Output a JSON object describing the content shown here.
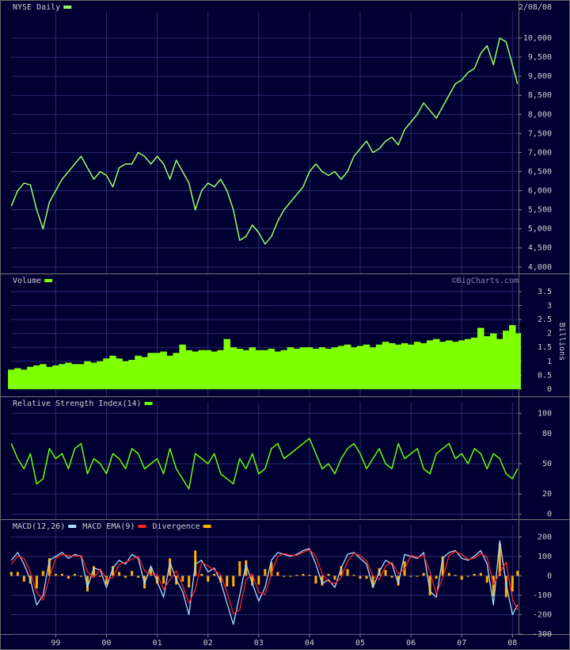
{
  "chart_data": [
    {
      "type": "line",
      "title": "NYSE Daily",
      "date": "2/08/08",
      "color": "#99ff66",
      "grid": true,
      "xlim": [
        1998.12,
        2008.12
      ],
      "x": [
        1998.125,
        1998.25,
        1998.375,
        1998.5,
        1998.625,
        1998.75,
        1998.875,
        1999.0,
        1999.125,
        1999.25,
        1999.375,
        1999.5,
        1999.625,
        1999.75,
        1999.875,
        2000.0,
        2000.125,
        2000.25,
        2000.375,
        2000.5,
        2000.625,
        2000.75,
        2000.875,
        2001.0,
        2001.125,
        2001.25,
        2001.375,
        2001.5,
        2001.625,
        2001.75,
        2001.875,
        2002.0,
        2002.125,
        2002.25,
        2002.375,
        2002.5,
        2002.625,
        2002.75,
        2002.875,
        2003.0,
        2003.125,
        2003.25,
        2003.375,
        2003.5,
        2003.625,
        2003.75,
        2003.875,
        2004.0,
        2004.125,
        2004.25,
        2004.375,
        2004.5,
        2004.625,
        2004.75,
        2004.875,
        2005.0,
        2005.125,
        2005.25,
        2005.375,
        2005.5,
        2005.625,
        2005.75,
        2005.875,
        2006.0,
        2006.125,
        2006.25,
        2006.375,
        2006.5,
        2006.625,
        2006.75,
        2006.875,
        2007.0,
        2007.125,
        2007.25,
        2007.375,
        2007.5,
        2007.625,
        2007.75,
        2007.875,
        2008.0,
        2008.1
      ],
      "values": [
        5600,
        6000,
        6200,
        6150,
        5500,
        5000,
        5700,
        6000,
        6300,
        6500,
        6700,
        6900,
        6600,
        6300,
        6500,
        6400,
        6100,
        6600,
        6700,
        6700,
        7000,
        6900,
        6700,
        6900,
        6700,
        6300,
        6800,
        6500,
        6200,
        5500,
        6000,
        6200,
        6100,
        6300,
        6000,
        5500,
        4700,
        4800,
        5100,
        4900,
        4600,
        4800,
        5200,
        5500,
        5700,
        5900,
        6100,
        6500,
        6700,
        6500,
        6400,
        6500,
        6300,
        6500,
        6900,
        7100,
        7300,
        7000,
        7100,
        7300,
        7400,
        7200,
        7600,
        7800,
        8000,
        8300,
        8100,
        7900,
        8200,
        8500,
        8800,
        8900,
        9100,
        9200,
        9600,
        9800,
        9300,
        10000,
        9900,
        9300,
        8800
      ],
      "ylim": [
        3830,
        10540
      ],
      "yticks": [
        {
          "value": 4000,
          "label": "4,000"
        },
        {
          "value": 4500,
          "label": "4,500"
        },
        {
          "value": 5000,
          "label": "5,000"
        },
        {
          "value": 5500,
          "label": "5,500"
        },
        {
          "value": 6000,
          "label": "6,000"
        },
        {
          "value": 6500,
          "label": "6,500"
        },
        {
          "value": 7000,
          "label": "7,000"
        },
        {
          "value": 7500,
          "label": "7,500"
        },
        {
          "value": 8000,
          "label": "8,000"
        },
        {
          "value": 8500,
          "label": "8,500"
        },
        {
          "value": 9000,
          "label": "9,000"
        },
        {
          "value": 9500,
          "label": "9,500"
        },
        {
          "value": 10000,
          "label": "10,000"
        }
      ]
    },
    {
      "type": "bar",
      "title": "Volume",
      "ylabel": "Billions",
      "watermark": "©BigCharts.com",
      "color": "#80ff00",
      "grid": true,
      "xlim": [
        1998.12,
        2008.12
      ],
      "x": [
        1998.125,
        1998.25,
        1998.375,
        1998.5,
        1998.625,
        1998.75,
        1998.875,
        1999.0,
        1999.125,
        1999.25,
        1999.375,
        1999.5,
        1999.625,
        1999.75,
        1999.875,
        2000.0,
        2000.125,
        2000.25,
        2000.375,
        2000.5,
        2000.625,
        2000.75,
        2000.875,
        2001.0,
        2001.125,
        2001.25,
        2001.375,
        2001.5,
        2001.625,
        2001.75,
        2001.875,
        2002.0,
        2002.125,
        2002.25,
        2002.375,
        2002.5,
        2002.625,
        2002.75,
        2002.875,
        2003.0,
        2003.125,
        2003.25,
        2003.375,
        2003.5,
        2003.625,
        2003.75,
        2003.875,
        2004.0,
        2004.125,
        2004.25,
        2004.375,
        2004.5,
        2004.625,
        2004.75,
        2004.875,
        2005.0,
        2005.125,
        2005.25,
        2005.375,
        2005.5,
        2005.625,
        2005.75,
        2005.875,
        2006.0,
        2006.125,
        2006.25,
        2006.375,
        2006.5,
        2006.625,
        2006.75,
        2006.875,
        2007.0,
        2007.125,
        2007.25,
        2007.375,
        2007.5,
        2007.625,
        2007.75,
        2007.875,
        2008.0,
        2008.1
      ],
      "values": [
        0.7,
        0.75,
        0.7,
        0.8,
        0.85,
        0.9,
        0.8,
        0.85,
        0.9,
        0.95,
        0.9,
        0.9,
        1.0,
        0.95,
        1.0,
        1.1,
        1.2,
        1.1,
        1.0,
        1.05,
        1.2,
        1.15,
        1.3,
        1.3,
        1.35,
        1.2,
        1.3,
        1.6,
        1.4,
        1.35,
        1.4,
        1.4,
        1.35,
        1.4,
        1.8,
        1.5,
        1.45,
        1.4,
        1.5,
        1.4,
        1.4,
        1.45,
        1.35,
        1.4,
        1.5,
        1.45,
        1.5,
        1.5,
        1.45,
        1.5,
        1.45,
        1.5,
        1.55,
        1.6,
        1.5,
        1.55,
        1.6,
        1.5,
        1.6,
        1.7,
        1.65,
        1.6,
        1.65,
        1.6,
        1.7,
        1.65,
        1.75,
        1.8,
        1.7,
        1.75,
        1.7,
        1.75,
        1.8,
        1.85,
        2.2,
        1.9,
        2.0,
        1.8,
        2.1,
        2.3,
        2.0
      ],
      "ylim": [
        -0.26,
        3.67
      ],
      "yticks": [
        0,
        0.5,
        1,
        1.5,
        2,
        2.5,
        3,
        3.5
      ]
    },
    {
      "type": "line",
      "title": "Relative Strength Index(14)",
      "color": "#66ff00",
      "grid": true,
      "xlim": [
        1998.12,
        2008.12
      ],
      "x": [
        1998.125,
        1998.25,
        1998.375,
        1998.5,
        1998.625,
        1998.75,
        1998.875,
        1999.0,
        1999.125,
        1999.25,
        1999.375,
        1999.5,
        1999.625,
        1999.75,
        1999.875,
        2000.0,
        2000.125,
        2000.25,
        2000.375,
        2000.5,
        2000.625,
        2000.75,
        2000.875,
        2001.0,
        2001.125,
        2001.25,
        2001.375,
        2001.5,
        2001.625,
        2001.75,
        2001.875,
        2002.0,
        2002.125,
        2002.25,
        2002.375,
        2002.5,
        2002.625,
        2002.75,
        2002.875,
        2003.0,
        2003.125,
        2003.25,
        2003.375,
        2003.5,
        2003.625,
        2003.75,
        2003.875,
        2004.0,
        2004.125,
        2004.25,
        2004.375,
        2004.5,
        2004.625,
        2004.75,
        2004.875,
        2005.0,
        2005.125,
        2005.25,
        2005.375,
        2005.5,
        2005.625,
        2005.75,
        2005.875,
        2006.0,
        2006.125,
        2006.25,
        2006.375,
        2006.5,
        2006.625,
        2006.75,
        2006.875,
        2007.0,
        2007.125,
        2007.25,
        2007.375,
        2007.5,
        2007.625,
        2007.75,
        2007.875,
        2008.0,
        2008.1
      ],
      "values": [
        70,
        55,
        45,
        60,
        30,
        35,
        65,
        55,
        60,
        45,
        65,
        70,
        40,
        55,
        50,
        40,
        60,
        55,
        45,
        65,
        60,
        45,
        50,
        55,
        40,
        65,
        45,
        35,
        25,
        60,
        55,
        50,
        60,
        40,
        35,
        30,
        55,
        45,
        60,
        40,
        45,
        65,
        70,
        55,
        60,
        65,
        70,
        75,
        60,
        45,
        50,
        40,
        55,
        65,
        70,
        60,
        45,
        55,
        65,
        50,
        45,
        70,
        55,
        60,
        65,
        45,
        40,
        60,
        65,
        70,
        55,
        60,
        50,
        65,
        60,
        45,
        60,
        55,
        40,
        35,
        45
      ],
      "ylim": [
        -5,
        105
      ],
      "yticks": [
        0,
        20,
        50,
        80,
        100
      ]
    },
    {
      "type": "line",
      "grid": true,
      "xlim": [
        1998.12,
        2008.12
      ],
      "xticks": [
        {
          "value": 1999,
          "label": "99"
        },
        {
          "value": 2000,
          "label": "00"
        },
        {
          "value": 2001,
          "label": "01"
        },
        {
          "value": 2002,
          "label": "02"
        },
        {
          "value": 2003,
          "label": "03"
        },
        {
          "value": 2004,
          "label": "04"
        },
        {
          "value": 2005,
          "label": "05"
        },
        {
          "value": 2006,
          "label": "06"
        },
        {
          "value": 2007,
          "label": "07"
        },
        {
          "value": 2008,
          "label": "08"
        }
      ],
      "x": [
        1998.125,
        1998.25,
        1998.375,
        1998.5,
        1998.625,
        1998.75,
        1998.875,
        1999.0,
        1999.125,
        1999.25,
        1999.375,
        1999.5,
        1999.625,
        1999.75,
        1999.875,
        2000.0,
        2000.125,
        2000.25,
        2000.375,
        2000.5,
        2000.625,
        2000.75,
        2000.875,
        2001.0,
        2001.125,
        2001.25,
        2001.375,
        2001.5,
        2001.625,
        2001.75,
        2001.875,
        2002.0,
        2002.125,
        2002.25,
        2002.375,
        2002.5,
        2002.625,
        2002.75,
        2002.875,
        2003.0,
        2003.125,
        2003.25,
        2003.375,
        2003.5,
        2003.625,
        2003.75,
        2003.875,
        2004.0,
        2004.125,
        2004.25,
        2004.375,
        2004.5,
        2004.625,
        2004.75,
        2004.875,
        2005.0,
        2005.125,
        2005.25,
        2005.375,
        2005.5,
        2005.625,
        2005.75,
        2005.875,
        2006.0,
        2006.125,
        2006.25,
        2006.375,
        2006.5,
        2006.625,
        2006.75,
        2006.875,
        2007.0,
        2007.125,
        2007.25,
        2007.375,
        2007.5,
        2007.625,
        2007.75,
        2007.875,
        2008.0,
        2008.1
      ],
      "series": [
        {
          "name": "MACD(12,26)",
          "color": "#aaddff",
          "values": [
            80,
            120,
            60,
            -20,
            -150,
            -100,
            80,
            100,
            120,
            90,
            110,
            100,
            -60,
            40,
            30,
            -60,
            40,
            80,
            60,
            110,
            90,
            -40,
            50,
            -30,
            -110,
            70,
            -20,
            -80,
            -200,
            60,
            80,
            20,
            40,
            -30,
            -140,
            -250,
            -100,
            60,
            -40,
            -130,
            -60,
            80,
            120,
            110,
            100,
            110,
            130,
            140,
            60,
            -40,
            -20,
            -60,
            40,
            110,
            120,
            90,
            60,
            -60,
            20,
            80,
            60,
            -40,
            110,
            100,
            90,
            120,
            -80,
            -110,
            90,
            120,
            130,
            90,
            80,
            100,
            130,
            60,
            -150,
            180,
            -40,
            -200,
            -150
          ]
        },
        {
          "name": "MACD EMA(9)",
          "color": "#ff2020",
          "values": [
            60,
            100,
            90,
            20,
            -85,
            -125,
            -10,
            90,
            110,
            105,
            100,
            105,
            20,
            -10,
            35,
            -15,
            -10,
            60,
            70,
            85,
            100,
            25,
            5,
            10,
            -70,
            -20,
            25,
            -50,
            -140,
            -70,
            70,
            50,
            30,
            5,
            -85,
            -195,
            -175,
            -20,
            10,
            -85,
            -95,
            10,
            100,
            115,
            105,
            105,
            120,
            135,
            100,
            10,
            -30,
            -40,
            -10,
            75,
            115,
            105,
            75,
            0,
            -20,
            50,
            70,
            10,
            35,
            105,
            95,
            105,
            20,
            -95,
            -10,
            105,
            125,
            110,
            85,
            90,
            115,
            95,
            -45,
            15,
            70,
            -120,
            -175
          ]
        },
        {
          "name": "Divergence",
          "color": "#ffb000",
          "type": "bar",
          "values": [
            20,
            20,
            -30,
            -40,
            -65,
            25,
            90,
            10,
            10,
            -15,
            10,
            -5,
            -80,
            50,
            -5,
            -45,
            50,
            20,
            -10,
            25,
            -10,
            -65,
            45,
            -40,
            -40,
            90,
            -45,
            -30,
            -60,
            130,
            10,
            -30,
            10,
            -35,
            -55,
            -55,
            75,
            80,
            -50,
            -45,
            35,
            70,
            20,
            -5,
            -5,
            5,
            10,
            5,
            -40,
            -50,
            10,
            -20,
            50,
            35,
            5,
            -15,
            -15,
            -60,
            40,
            30,
            -10,
            -50,
            75,
            -5,
            -5,
            15,
            -100,
            -15,
            100,
            15,
            5,
            -20,
            -5,
            10,
            15,
            -35,
            -105,
            165,
            -110,
            -80,
            25
          ]
        }
      ],
      "ylim": [
        -300,
        230
      ],
      "yticks": [
        -300,
        -200,
        -100,
        0,
        100,
        200
      ]
    }
  ]
}
